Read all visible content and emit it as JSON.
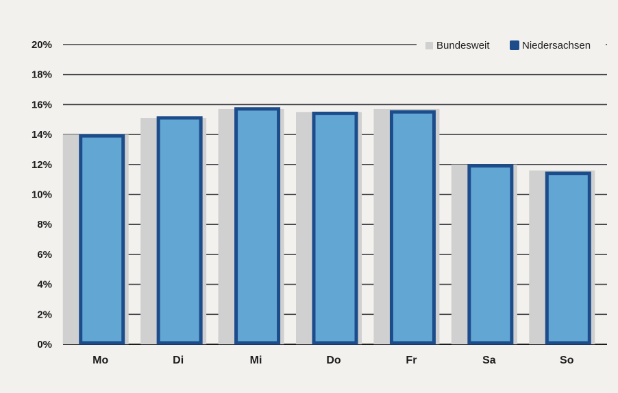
{
  "chart_data": {
    "type": "bar",
    "categories": [
      "Mo",
      "Di",
      "Mi",
      "Do",
      "Fr",
      "Sa",
      "So"
    ],
    "series": [
      {
        "name": "Bundesweit",
        "values": [
          14.0,
          15.1,
          15.7,
          15.5,
          15.7,
          12.0,
          11.6
        ],
        "color": "#d0d0d0"
      },
      {
        "name": "Niedersachsen",
        "values": [
          14.0,
          15.2,
          15.8,
          15.5,
          15.6,
          12.0,
          11.5
        ],
        "color": "#62a6d3",
        "border_color": "#1d4c8b"
      }
    ],
    "y_ticks": [
      "0%",
      "2%",
      "4%",
      "6%",
      "8%",
      "10%",
      "12%",
      "14%",
      "16%",
      "18%",
      "20%"
    ],
    "ylim": [
      0,
      20
    ],
    "grid": true,
    "legend_position": "top-right",
    "title": "",
    "xlabel": "",
    "ylabel": ""
  }
}
